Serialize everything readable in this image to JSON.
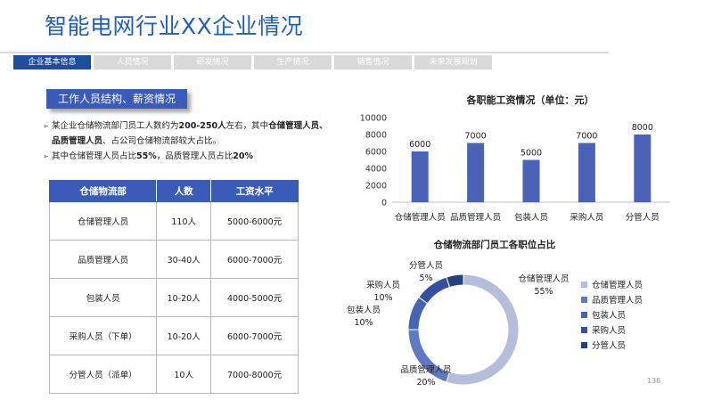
{
  "title": "智能电网行业XX企业情况",
  "tabs": [
    "企业基本信息",
    "人员情况",
    "研发情况",
    "生产情况",
    "销售情况",
    "未来发展规划"
  ],
  "subheading": "工作人员结构、薪资情况",
  "bullets": [
    [
      [
        "某企业仓储物流部门员工人数约为",
        false
      ],
      [
        "200-250人",
        true
      ],
      [
        "左右，其中",
        false
      ],
      [
        "仓储管理人员、品质管理人员",
        true
      ],
      [
        "、占公司仓储物流部较大占比。",
        false
      ]
    ],
    [
      [
        "其中仓储管理人员占比",
        false
      ],
      [
        "55%",
        true
      ],
      [
        "，品质管理人员占比",
        false
      ],
      [
        "20%",
        true
      ]
    ]
  ],
  "table": {
    "headers": [
      "仓储物流部",
      "人数",
      "工资水平"
    ],
    "rows": [
      [
        "仓储管理人员",
        "110人",
        "5000-6000元"
      ],
      [
        "品质管理人员",
        "30-40人",
        "6000-7000元"
      ],
      [
        "包装人员",
        "10-20人",
        "4000-5000元"
      ],
      [
        "采购人员（下单）",
        "10-20人",
        "6000-7000元"
      ],
      [
        "分管人员（派单）",
        "10人",
        "7000-8000元"
      ]
    ]
  },
  "chart_data": [
    {
      "type": "bar",
      "title": "各职能工资情况（单位：元）",
      "categories": [
        "仓储管理人员",
        "品质管理人员",
        "包装人员",
        "采购人员",
        "分管人员"
      ],
      "values": [
        6000,
        7000,
        5000,
        7000,
        8000
      ],
      "ylim": [
        0,
        10000
      ],
      "yticks": [
        0,
        2000,
        4000,
        6000,
        8000,
        10000
      ],
      "color": "#4a63b8"
    },
    {
      "type": "pie",
      "title": "仓储物流部门员工各职位占比",
      "labels": [
        "仓储管理人员",
        "品质管理人员",
        "包装人员",
        "采购人员",
        "分管人员"
      ],
      "values": [
        55,
        20,
        10,
        10,
        5
      ],
      "value_labels": [
        "55%",
        "20%",
        "10%",
        "10%",
        "5%"
      ],
      "colors": [
        "#b4bdd9",
        "#5f7ac4",
        "#4763b3",
        "#344f9e",
        "#263f7e"
      ],
      "legend": "right"
    }
  ],
  "page_number": "138"
}
